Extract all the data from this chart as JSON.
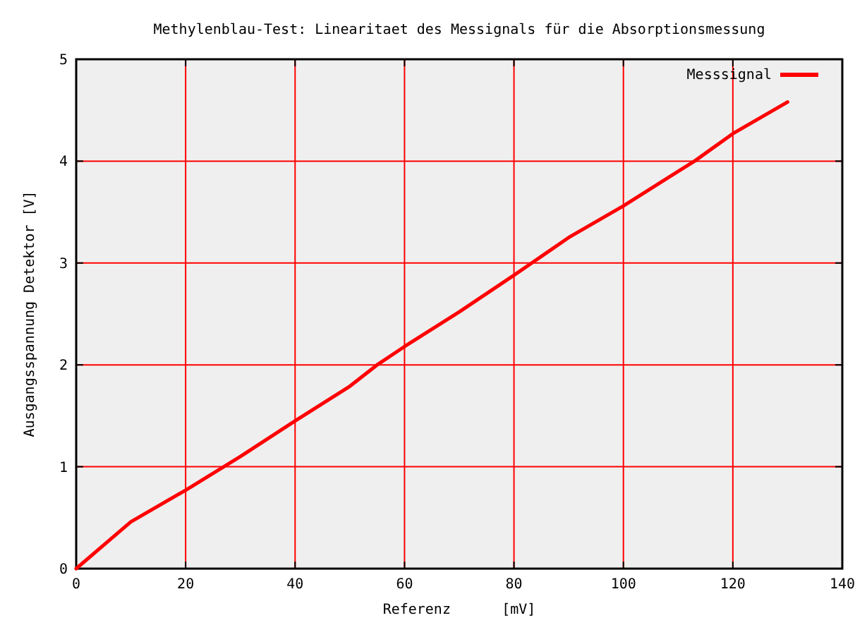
{
  "chart_data": {
    "type": "line",
    "title": "Methylenblau-Test: Linearitaet des Messignals für die Absorptionsmessung",
    "xlabel": "Referenz      [mV]",
    "ylabel": "Ausgangsspannung Detektor [V]",
    "x": [
      0,
      10,
      20,
      30,
      40,
      50,
      55,
      60,
      70,
      80,
      90,
      100,
      110,
      113,
      120,
      130
    ],
    "series": [
      {
        "name": "Messsignal",
        "color": "#ff0000",
        "values": [
          0,
          0.46,
          0.77,
          1.1,
          1.45,
          1.79,
          2.0,
          2.18,
          2.52,
          2.88,
          3.25,
          3.56,
          3.9,
          4.0,
          4.27,
          4.58
        ]
      }
    ],
    "xlim": [
      0,
      140
    ],
    "xticks": [
      0,
      20,
      40,
      60,
      80,
      100,
      120,
      140
    ],
    "ylim": [
      0,
      5
    ],
    "yticks": [
      0,
      1,
      2,
      3,
      4,
      5
    ],
    "grid": true,
    "legend": "top right",
    "marker": "none",
    "line_style": "solid"
  }
}
